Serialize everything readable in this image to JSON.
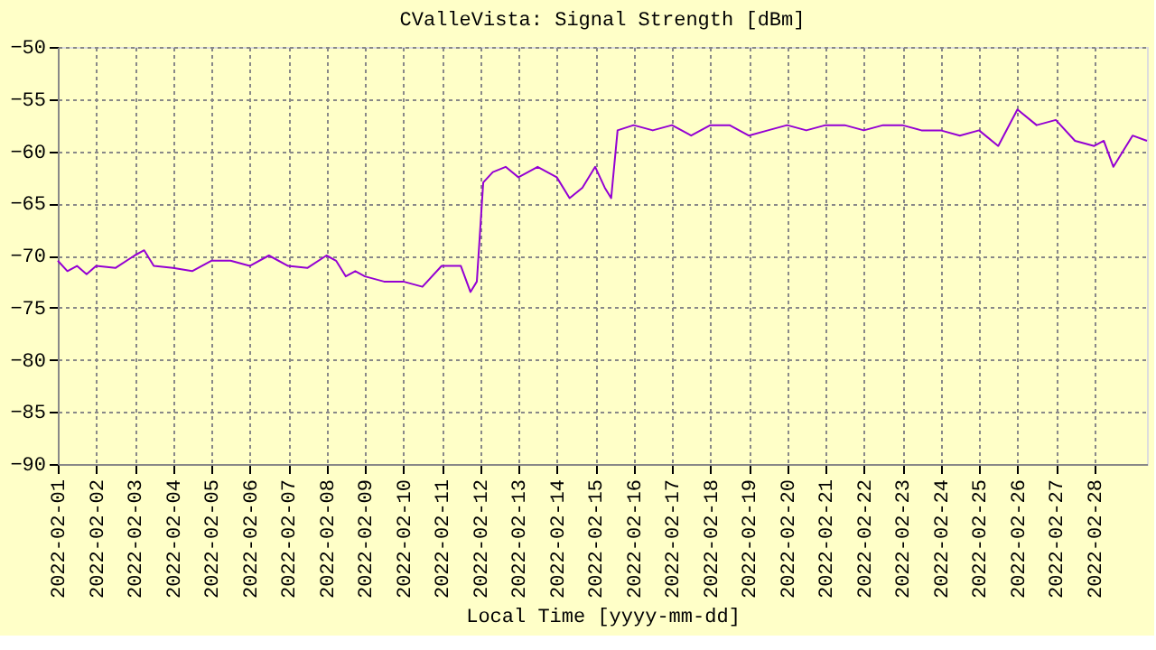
{
  "chart_data": {
    "type": "line",
    "title": "CValleVista: Signal Strength [dBm]",
    "xlabel": "Local Time [yyyy-mm-dd]",
    "xlim": [
      "2022-02-01",
      "2022-03-01T09:00"
    ],
    "xticks": [
      "2022-02-01",
      "2022-02-02",
      "2022-02-03",
      "2022-02-04",
      "2022-02-05",
      "2022-02-06",
      "2022-02-07",
      "2022-02-08",
      "2022-02-09",
      "2022-02-10",
      "2022-02-11",
      "2022-02-12",
      "2022-02-13",
      "2022-02-14",
      "2022-02-15",
      "2022-02-16",
      "2022-02-17",
      "2022-02-18",
      "2022-02-19",
      "2022-02-20",
      "2022-02-21",
      "2022-02-22",
      "2022-02-23",
      "2022-02-24",
      "2022-02-25",
      "2022-02-26",
      "2022-02-27",
      "2022-02-28"
    ],
    "ylim": [
      -90,
      -50
    ],
    "yticks": [
      -90,
      -85,
      -80,
      -75,
      -70,
      -65,
      -60,
      -55,
      -50
    ],
    "grid": true,
    "line_style": "solid",
    "marker": "none",
    "series": [
      {
        "color": "#9400d3",
        "x": [
          "2022-02-01T00:00",
          "2022-02-01T06:00",
          "2022-02-01T12:00",
          "2022-02-01T18:00",
          "2022-02-02T00:00",
          "2022-02-02T12:00",
          "2022-02-03T00:00",
          "2022-02-03T06:00",
          "2022-02-03T12:00",
          "2022-02-04T00:00",
          "2022-02-04T12:00",
          "2022-02-05T00:00",
          "2022-02-05T12:00",
          "2022-02-06T00:00",
          "2022-02-06T12:00",
          "2022-02-07T00:00",
          "2022-02-07T12:00",
          "2022-02-08T00:00",
          "2022-02-08T06:00",
          "2022-02-08T12:00",
          "2022-02-08T18:00",
          "2022-02-09T00:00",
          "2022-02-09T12:00",
          "2022-02-10T00:00",
          "2022-02-10T12:00",
          "2022-02-11T00:00",
          "2022-02-11T12:00",
          "2022-02-11T18:00",
          "2022-02-11T22:00",
          "2022-02-12T02:00",
          "2022-02-12T08:00",
          "2022-02-12T16:00",
          "2022-02-13T00:00",
          "2022-02-13T12:00",
          "2022-02-14T00:00",
          "2022-02-14T08:00",
          "2022-02-14T16:00",
          "2022-02-15T00:00",
          "2022-02-15T06:00",
          "2022-02-15T10:00",
          "2022-02-15T14:00",
          "2022-02-16T00:00",
          "2022-02-16T12:00",
          "2022-02-17T00:00",
          "2022-02-17T12:00",
          "2022-02-18T00:00",
          "2022-02-18T12:00",
          "2022-02-19T00:00",
          "2022-02-19T12:00",
          "2022-02-20T00:00",
          "2022-02-20T12:00",
          "2022-02-21T00:00",
          "2022-02-21T12:00",
          "2022-02-22T00:00",
          "2022-02-22T12:00",
          "2022-02-23T00:00",
          "2022-02-23T12:00",
          "2022-02-24T00:00",
          "2022-02-24T12:00",
          "2022-02-25T00:00",
          "2022-02-25T12:00",
          "2022-02-26T00:00",
          "2022-02-26T12:00",
          "2022-02-27T00:00",
          "2022-02-27T12:00",
          "2022-02-28T00:00",
          "2022-02-28T06:00",
          "2022-02-28T12:00",
          "2022-02-28T18:00",
          "2022-03-01T00:00",
          "2022-03-01T09:00"
        ],
        "values": [
          -70.5,
          -71.5,
          -71,
          -71.8,
          -71,
          -71.2,
          -70,
          -69.5,
          -71,
          -71.2,
          -71.5,
          -70.5,
          -70.5,
          -71,
          -70,
          -71,
          -71.2,
          -70,
          -70.5,
          -72,
          -71.5,
          -72,
          -72.5,
          -72.5,
          -73,
          -71,
          -71,
          -73.5,
          -72.5,
          -63,
          -62,
          -61.5,
          -62.5,
          -61.5,
          -62.5,
          -64.5,
          -63.5,
          -61.5,
          -63.5,
          -64.5,
          -58,
          -57.5,
          -58,
          -57.5,
          -58.5,
          -57.5,
          -57.5,
          -58.5,
          -58,
          -57.5,
          -58,
          -57.5,
          -57.5,
          -58,
          -57.5,
          -57.5,
          -58,
          -58,
          -58.5,
          -58,
          -59.5,
          -56,
          -57.5,
          -57,
          -59,
          -59.5,
          -59,
          -61.5,
          -60,
          -58.5,
          -59
        ]
      }
    ]
  }
}
